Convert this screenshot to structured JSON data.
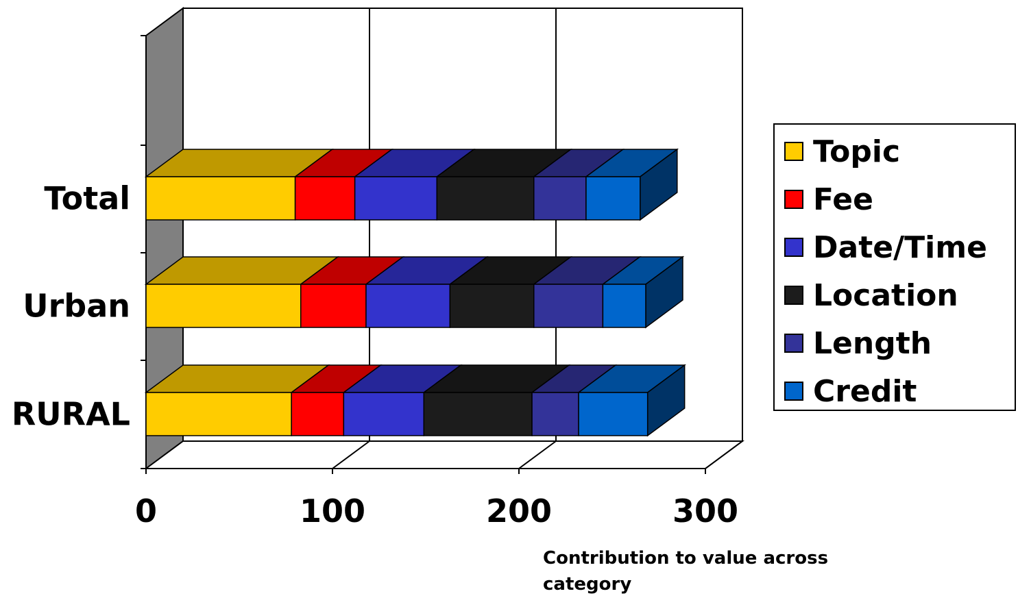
{
  "chart_data": {
    "type": "bar",
    "orientation": "horizontal",
    "stacked": true,
    "three_d": true,
    "categories": [
      "Total",
      "Urban",
      "RURAL"
    ],
    "series": [
      {
        "name": "Topic",
        "color": "#ffcc00",
        "values": [
          80,
          83,
          78
        ]
      },
      {
        "name": "Fee",
        "color": "#ff0000",
        "values": [
          32,
          35,
          28
        ]
      },
      {
        "name": "Date/Time",
        "color": "#3333cc",
        "values": [
          44,
          45,
          43
        ]
      },
      {
        "name": "Location",
        "color": "#1c1c1c",
        "values": [
          52,
          45,
          58
        ]
      },
      {
        "name": "Length",
        "color": "#333399",
        "values": [
          28,
          37,
          25
        ]
      },
      {
        "name": "Credit",
        "color": "#0066cc",
        "values": [
          29,
          23,
          37
        ]
      }
    ],
    "xticks": [
      "0",
      "100",
      "200",
      "300"
    ],
    "xlim": [
      0,
      300
    ],
    "xlabel": "Contribution to value across category",
    "ylabel": "",
    "title": "",
    "grid": true,
    "legend_position": "right"
  }
}
